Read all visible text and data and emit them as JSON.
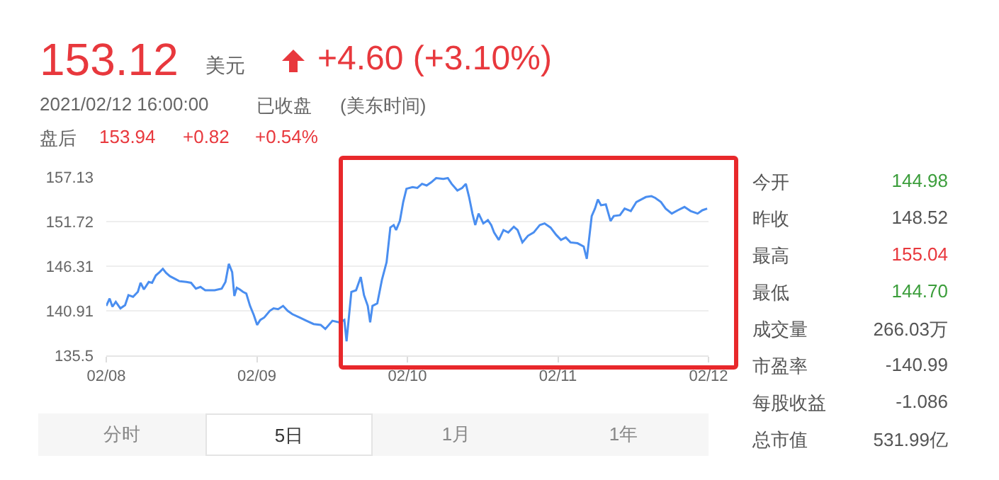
{
  "chart_data": [
    {
      "type": "other",
      "annotations": [
        "153.12",
        "美元",
        "+4.60 (+3.10%)",
        "2021/02/12 16:00:00",
        "已收盘",
        "(美东时间)",
        "盘后",
        "153.94",
        "+0.82",
        "+0.54%"
      ]
    },
    {
      "type": "line",
      "grid": "y",
      "marker": "none",
      "line_style": "solid",
      "xlim": [
        "2021-02-08",
        "2021-02-12"
      ],
      "xticks": [
        {
          "value": "2021-02-08",
          "label": "02/08"
        },
        {
          "value": "2021-02-09",
          "label": "02/09"
        },
        {
          "value": "2021-02-10",
          "label": "02/10"
        },
        {
          "value": "2021-02-11",
          "label": "02/11"
        },
        {
          "value": "2021-02-12",
          "label": "02/12"
        }
      ],
      "ylim": [
        135.5,
        157.13
      ],
      "yticks": [
        135.5,
        140.91,
        146.31,
        151.72,
        157.13
      ],
      "series": [
        {
          "color": "#4a8ef0",
          "x": [
            "2021-02-08T00:00",
            "2021-02-08T00:32",
            "2021-02-08T00:59",
            "2021-02-08T01:31",
            "2021-02-08T02:15",
            "2021-02-08T03:00",
            "2021-02-08T03:32",
            "2021-02-08T04:16",
            "2021-02-08T05:02",
            "2021-02-08T05:28",
            "2021-02-08T06:00",
            "2021-02-08T06:46",
            "2021-02-08T07:18",
            "2021-02-08T07:54",
            "2021-02-08T08:30",
            "2021-02-08T09:01",
            "2021-02-08T09:32",
            "2021-02-08T10:09",
            "2021-02-08T10:54",
            "2021-02-08T11:38",
            "2021-02-08T12:46",
            "2021-02-08T13:31",
            "2021-02-08T14:17",
            "2021-02-08T15:01",
            "2021-02-08T15:46",
            "2021-02-08T17:17",
            "2021-02-08T18:24",
            "2021-02-08T19:00",
            "2021-02-08T19:32",
            "2021-02-08T20:04",
            "2021-02-08T20:25",
            "2021-02-08T20:48",
            "2021-02-08T21:16",
            "2021-02-08T21:48",
            "2021-02-08T22:19",
            "2021-02-08T22:55",
            "2021-02-08T23:31",
            "2021-02-09T00:03",
            "2021-02-09T00:33",
            "2021-02-09T01:11",
            "2021-02-09T02:04",
            "2021-02-09T02:40",
            "2021-02-09T03:24",
            "2021-02-09T04:11",
            "2021-02-09T04:55",
            "2021-02-09T05:40",
            "2021-02-09T06:48",
            "2021-02-09T07:55",
            "2021-02-09T09:03",
            "2021-02-09T10:11",
            "2021-02-09T10:55",
            "2021-02-09T12:03",
            "2021-02-09T13:11",
            "2021-02-09T13:57",
            "2021-02-09T14:18",
            "2021-02-09T15:04",
            "2021-02-09T15:49",
            "2021-02-09T16:34",
            "2021-02-09T17:05",
            "2021-02-09T17:41",
            "2021-02-09T18:04",
            "2021-02-09T18:26",
            "2021-02-09T19:12",
            "2021-02-09T19:57",
            "2021-02-09T20:41",
            "2021-02-09T21:17",
            "2021-02-09T21:49",
            "2021-02-09T22:12",
            "2021-02-09T22:48",
            "2021-02-09T23:20",
            "2021-02-09T23:51",
            "2021-02-10T00:49",
            "2021-02-10T01:35",
            "2021-02-10T02:20",
            "2021-02-10T03:04",
            "2021-02-10T03:50",
            "2021-02-10T04:35",
            "2021-02-10T05:43",
            "2021-02-10T06:27",
            "2021-02-10T07:03",
            "2021-02-10T07:58",
            "2021-02-10T08:43",
            "2021-02-10T09:19",
            "2021-02-10T09:50",
            "2021-02-10T10:22",
            "2021-02-10T10:49",
            "2021-02-10T11:21",
            "2021-02-10T12:06",
            "2021-02-10T12:50",
            "2021-02-10T13:22",
            "2021-02-10T13:49",
            "2021-02-10T14:34",
            "2021-02-10T15:19",
            "2021-02-10T16:05",
            "2021-02-10T16:58",
            "2021-02-10T17:34",
            "2021-02-10T18:20",
            "2021-02-10T19:13",
            "2021-02-10T20:08",
            "2021-02-10T21:06",
            "2021-02-10T21:52",
            "2021-02-10T22:49",
            "2021-02-10T23:44",
            "2021-02-11T00:29",
            "2021-02-11T01:15",
            "2021-02-11T02:00",
            "2021-02-11T03:07",
            "2021-02-11T04:06",
            "2021-02-11T04:36",
            "2021-02-11T05:23",
            "2021-02-11T05:54",
            "2021-02-11T06:22",
            "2021-02-11T06:52",
            "2021-02-11T07:38",
            "2021-02-11T08:23",
            "2021-02-11T08:54",
            "2021-02-11T09:53",
            "2021-02-11T10:38",
            "2021-02-11T11:37",
            "2021-02-11T12:30",
            "2021-02-11T13:15",
            "2021-02-11T14:01",
            "2021-02-11T14:54",
            "2021-02-11T15:30",
            "2021-02-11T16:25",
            "2021-02-11T17:10",
            "2021-02-11T18:09",
            "2021-02-11T19:06",
            "2021-02-11T20:10",
            "2021-02-11T21:09",
            "2021-02-11T22:16",
            "2021-02-11T23:01",
            "2021-02-11T23:47"
          ],
          "values": [
            141.5,
            142.4,
            141.4,
            142.0,
            141.2,
            141.6,
            142.8,
            142.6,
            143.2,
            144.3,
            143.5,
            144.4,
            144.3,
            145.2,
            145.6,
            146.0,
            145.5,
            145.1,
            144.8,
            144.5,
            144.4,
            144.3,
            143.6,
            143.8,
            143.4,
            143.4,
            143.6,
            144.4,
            146.6,
            145.6,
            142.7,
            143.7,
            143.5,
            143.2,
            143.0,
            141.5,
            140.4,
            139.2,
            139.8,
            140.1,
            140.9,
            141.2,
            141.1,
            141.5,
            140.9,
            140.5,
            140.1,
            139.7,
            139.3,
            139.2,
            138.7,
            139.7,
            139.5,
            139.8,
            137.2,
            143.2,
            143.4,
            145.0,
            142.8,
            141.5,
            139.5,
            141.5,
            141.8,
            144.7,
            146.8,
            151.0,
            151.3,
            150.7,
            151.8,
            154.1,
            155.7,
            155.9,
            155.8,
            156.3,
            156.1,
            156.5,
            157.0,
            156.9,
            157.0,
            156.3,
            155.5,
            155.8,
            156.3,
            154.7,
            152.7,
            151.3,
            152.7,
            151.5,
            151.9,
            151.3,
            150.4,
            149.5,
            150.7,
            150.4,
            151.1,
            150.7,
            149.2,
            150.0,
            150.4,
            151.3,
            151.5,
            151.0,
            150.1,
            149.5,
            149.8,
            149.2,
            149.1,
            148.7,
            147.2,
            152.4,
            153.3,
            154.4,
            153.7,
            153.8,
            151.8,
            152.4,
            152.5,
            153.3,
            153.0,
            154.1,
            154.4,
            154.7,
            154.8,
            154.6,
            154.1,
            153.3,
            152.7,
            153.1,
            153.5,
            153.0,
            152.7,
            153.1,
            153.3
          ]
        }
      ]
    },
    {
      "type": "other",
      "annotations": [
        "今开",
        "144.98",
        "昨收",
        "148.52",
        "最高",
        "155.04",
        "最低",
        "144.70",
        "成交量",
        "266.03万",
        "市盈率",
        "-140.99",
        "每股收益",
        "-1.086",
        "总市值",
        "531.99亿"
      ]
    },
    {
      "type": "other",
      "annotations": [
        "分时",
        "5日",
        "1月",
        "1年"
      ]
    }
  ]
}
